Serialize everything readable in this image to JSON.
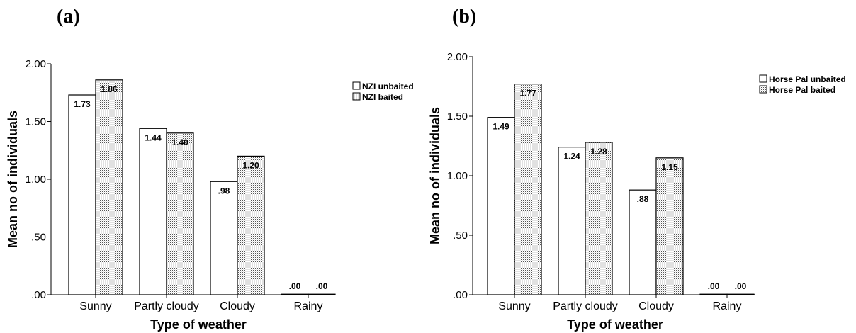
{
  "panels": [
    {
      "label": "(a)"
    },
    {
      "label": "(b)"
    }
  ],
  "colors": {
    "bar_outline": "#000000",
    "unbaited_fill": "#ffffff",
    "baited_fill": "#d9d9d9",
    "axis": "#000000"
  },
  "chart_data": [
    {
      "type": "bar",
      "title": "",
      "xlabel": "Type of weather",
      "ylabel": "Mean no of individuals",
      "ylim": [
        0,
        2.0
      ],
      "yticks": [
        ".00",
        ".50",
        "1.00",
        "1.50",
        "2.00"
      ],
      "categories": [
        "Sunny",
        "Partly cloudy",
        "Cloudy",
        "Rainy"
      ],
      "series": [
        {
          "name": "NZI unbaited",
          "values": [
            1.73,
            1.44,
            0.98,
            0.0
          ],
          "labels": [
            "1.73",
            "1.44",
            ".98",
            ".00"
          ]
        },
        {
          "name": "NZI baited",
          "values": [
            1.86,
            1.4,
            1.2,
            0.0
          ],
          "labels": [
            "1.86",
            "1.40",
            "1.20",
            ".00"
          ]
        }
      ],
      "legend_position": "top-right"
    },
    {
      "type": "bar",
      "title": "",
      "xlabel": "Type of weather",
      "ylabel": "Mean no of individuals",
      "ylim": [
        0,
        2.0
      ],
      "yticks": [
        ".00",
        ".50",
        "1.00",
        "1.50",
        "2.00"
      ],
      "categories": [
        "Sunny",
        "Partly cloudy",
        "Cloudy",
        "Rainy"
      ],
      "series": [
        {
          "name": "Horse Pal unbaited",
          "values": [
            1.49,
            1.24,
            0.88,
            0.0
          ],
          "labels": [
            "1.49",
            "1.24",
            ".88",
            ".00"
          ]
        },
        {
          "name": "Horse Pal baited",
          "values": [
            1.77,
            1.28,
            1.15,
            0.0
          ],
          "labels": [
            "1.77",
            "1.28",
            "1.15",
            ".00"
          ]
        }
      ],
      "legend_position": "top-right"
    }
  ]
}
